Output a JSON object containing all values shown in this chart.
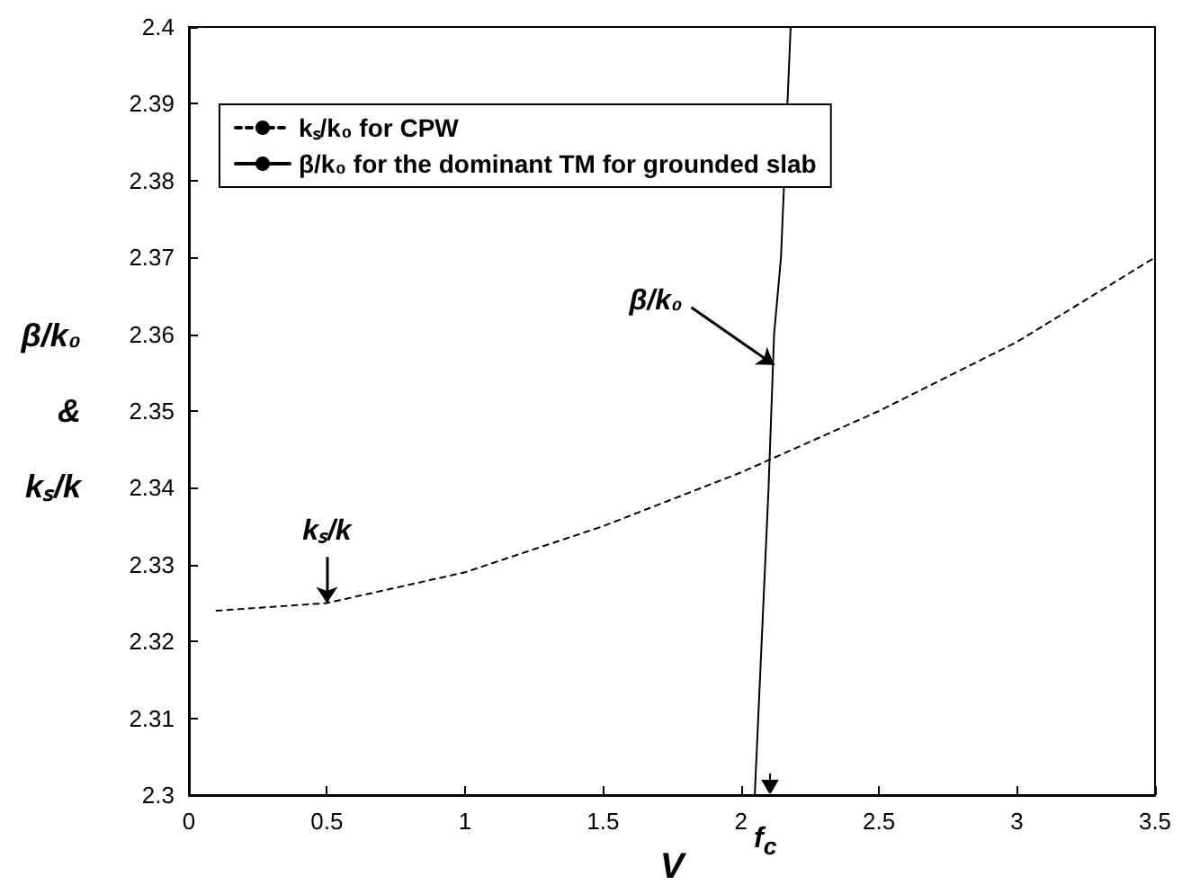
{
  "chart_data": {
    "type": "line",
    "xlabel": "V",
    "ylabel": "β/k₀\n&\nkₛ/k",
    "xlim": [
      0,
      3.5
    ],
    "xticks": [
      0,
      0.5,
      1,
      1.5,
      2,
      2.5,
      3,
      3.5
    ],
    "ylim": [
      2.3,
      2.4
    ],
    "yticks": [
      2.3,
      2.31,
      2.32,
      2.33,
      2.34,
      2.35,
      2.36,
      2.37,
      2.38,
      2.39,
      2.4
    ],
    "series": [
      {
        "name": "kₛ/k₀ for CPW",
        "color": "#000000",
        "line_style": "dashed",
        "x": [
          0.1,
          0.5,
          1,
          1.5,
          2,
          2.5,
          3,
          3.5
        ],
        "values": [
          2.324,
          2.325,
          2.329,
          2.335,
          2.342,
          2.35,
          2.359,
          2.37
        ]
      },
      {
        "name": "β/k₀ for the dominant TM for grounded slab",
        "color": "#000000",
        "line_style": "solid",
        "x": [
          2.05,
          2.1,
          2.12,
          2.145,
          2.18
        ],
        "values": [
          2.3,
          2.34,
          2.36,
          2.37,
          2.4
        ]
      }
    ],
    "annotations": [
      {
        "text": "β/k₀",
        "x": 2.12,
        "y": 2.356
      },
      {
        "text": "kₛ/k",
        "x": 0.5,
        "y": 2.325
      },
      "f$_{c}$"
    ],
    "legend": "top left",
    "grid": false,
    "marker": "none"
  }
}
